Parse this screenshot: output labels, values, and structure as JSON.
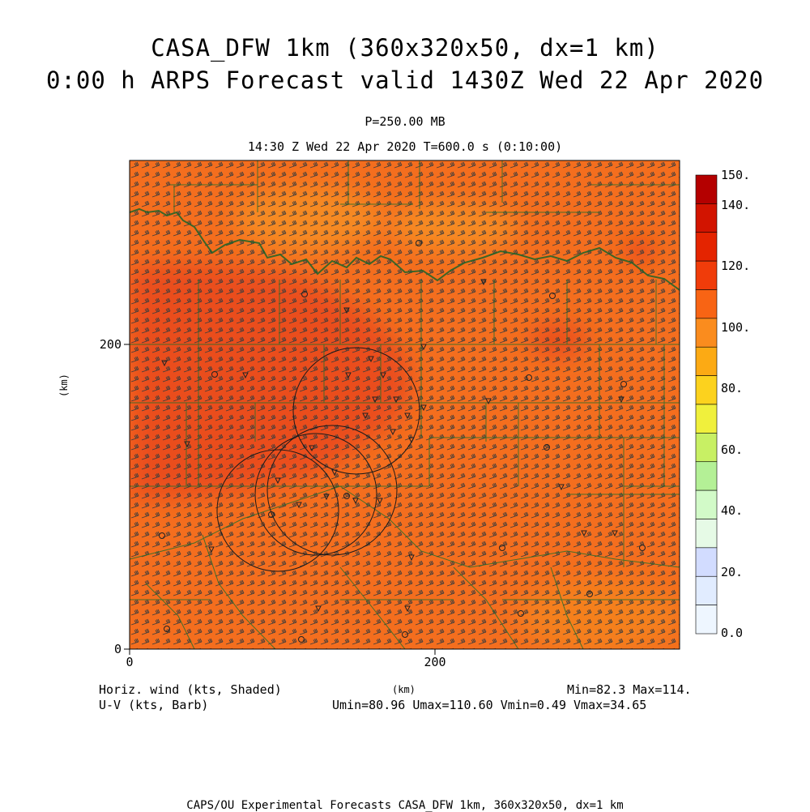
{
  "header": {
    "title_line1": "CASA_DFW 1km (360x320x50, dx=1 km)",
    "title_line2": "0:00 h ARPS Forecast valid 1430Z Wed 22 Apr 2020",
    "level": "P=250.00 MB",
    "valid_time": "14:30 Z Wed 22 Apr 2020   T=600.0 s (0:10:00)"
  },
  "axes": {
    "x_ticks": [
      "0",
      "200"
    ],
    "y_ticks": [
      "0",
      "200"
    ],
    "x_unit": "(km)",
    "y_unit": "(km)"
  },
  "colorbar": {
    "labels": [
      "150.",
      "140.",
      "120.",
      "100.",
      "80.",
      "60.",
      "40.",
      "20.",
      "0.0"
    ],
    "colors": [
      "#b40000",
      "#d21400",
      "#e42400",
      "#f03c0a",
      "#f86414",
      "#fa8c1e",
      "#fcaa14",
      "#fcd21e",
      "#f0f03c",
      "#c8f064",
      "#b4f096",
      "#d2fac8",
      "#e6fae6",
      "#d2dcff",
      "#e1ecff",
      "#eef6ff"
    ]
  },
  "field": {
    "base_color": "#f46e1e",
    "stronger_wind_color": "#ea4e1e",
    "weaker_wind_color": "#f68a24",
    "barb_color": "#3c3c3c",
    "boundary_color": "#1e6428",
    "ring_color": "#1a1a1a",
    "radar_marker_color": "#222222"
  },
  "footer": {
    "left_line1": "Horiz. wind (kts, Shaded)",
    "left_line2": "U-V (kts, Barb)",
    "minmax": "Min=82.3 Max=114.",
    "uvstats": "Umin=80.96 Umax=110.60 Vmin=0.49 Vmax=34.65",
    "credit": "CAPS/OU Experimental Forecasts  CASA_DFW 1km, 360x320x50, dx=1 km"
  }
}
